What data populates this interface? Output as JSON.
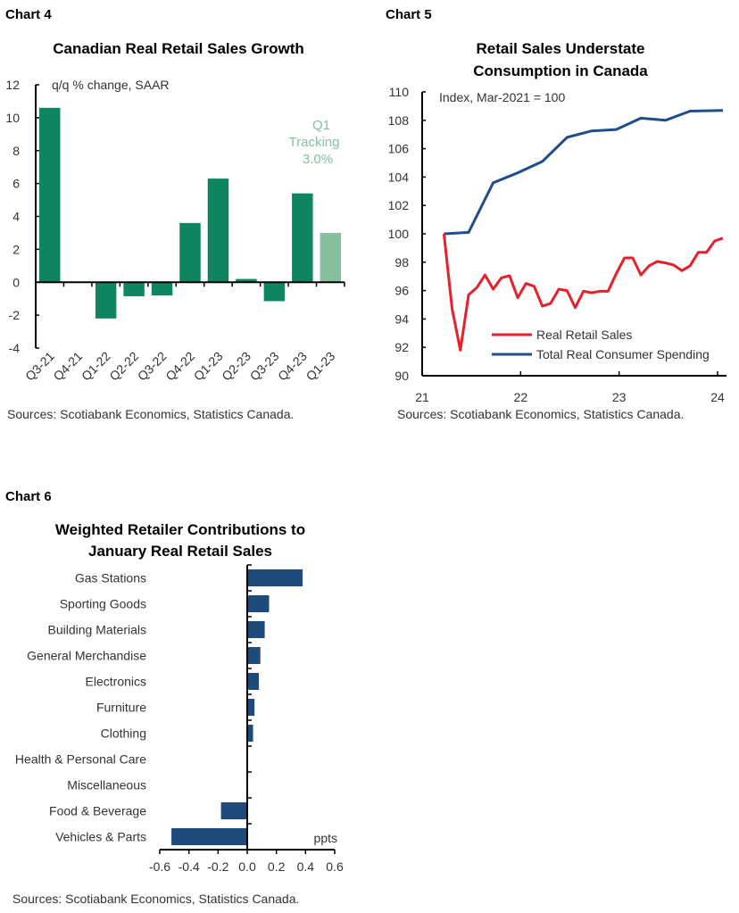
{
  "chart_data": [
    {
      "id": "chart4",
      "type": "bar",
      "label": "Chart 4",
      "title": "Canadian Real Retail Sales Growth",
      "ylabel": "q/q % change, SAAR",
      "categories": [
        "Q3-21",
        "Q4-21",
        "Q1-22",
        "Q2-22",
        "Q3-22",
        "Q4-22",
        "Q1-23",
        "Q2-23",
        "Q3-23",
        "Q4-23",
        "Q1-23"
      ],
      "values": [
        10.6,
        0,
        -2.2,
        -0.85,
        -0.8,
        3.6,
        6.3,
        0.2,
        -1.15,
        5.4,
        3.0
      ],
      "highlight_last": true,
      "annotation": [
        "Q1",
        "Tracking",
        "3.0%"
      ],
      "ylim": [
        -4,
        12
      ],
      "yticks": [
        "-4",
        "-2",
        "0",
        "2",
        "4",
        "6",
        "8",
        "10",
        "12"
      ],
      "colors": {
        "bar": "#0e8560",
        "tracking": "#86c09f",
        "annotation": "#86c09f"
      },
      "source": "Sources: Scotiabank Economics, Statistics Canada."
    },
    {
      "id": "chart5",
      "type": "line",
      "label": "Chart 5",
      "title": [
        "Retail Sales Understate",
        "Consumption in Canada"
      ],
      "ylabel": "Index, Mar-2021 = 100",
      "ylim": [
        90,
        110
      ],
      "yticks": [
        "90",
        "92",
        "94",
        "96",
        "98",
        "100",
        "102",
        "104",
        "106",
        "108",
        "110"
      ],
      "xticks": [
        "21",
        "22",
        "23",
        "24"
      ],
      "legend": "bottom-right",
      "series": [
        {
          "name": "Real Retail Sales",
          "color": "#e8202a",
          "x": [
            "Mar-21",
            "Apr-21",
            "May-21",
            "Jun-21",
            "Jul-21",
            "Aug-21",
            "Sep-21",
            "Oct-21",
            "Nov-21",
            "Dec-21",
            "Jan-22",
            "Feb-22",
            "Mar-22",
            "Apr-22",
            "May-22",
            "Jun-22",
            "Jul-22",
            "Aug-22",
            "Sep-22",
            "Oct-22",
            "Nov-22",
            "Dec-22",
            "Jan-23",
            "Feb-23",
            "Mar-23",
            "Apr-23",
            "May-23",
            "Jun-23",
            "Jul-23",
            "Aug-23",
            "Sep-23",
            "Oct-23",
            "Nov-23",
            "Dec-23",
            "Jan-24"
          ],
          "values": [
            100,
            94.7,
            91.8,
            95.7,
            96.2,
            97.1,
            96.1,
            96.9,
            97.05,
            95.5,
            96.5,
            96.3,
            94.9,
            95.1,
            96.1,
            96.0,
            94.8,
            95.95,
            95.85,
            95.95,
            95.95,
            97.2,
            98.3,
            98.3,
            97.1,
            97.75,
            98.05,
            97.95,
            97.8,
            97.4,
            97.75,
            98.7,
            98.7,
            99.5,
            99.7
          ]
        },
        {
          "name": "Total Real Consumer Spending",
          "color": "#1f4e8c",
          "x": [
            "Mar-21",
            "Jun-21",
            "Sep-21",
            "Dec-21",
            "Mar-22",
            "Jun-22",
            "Sep-22",
            "Dec-22",
            "Mar-23",
            "Jun-23",
            "Sep-23",
            "Jan-24"
          ],
          "values": [
            100,
            100.1,
            103.6,
            104.3,
            105.1,
            106.8,
            107.25,
            107.35,
            108.15,
            108.0,
            108.65,
            108.7
          ]
        }
      ],
      "source": "Sources: Scotiabank Economics, Statistics Canada."
    },
    {
      "id": "chart6",
      "type": "bar",
      "orientation": "horizontal",
      "label": "Chart 6",
      "title": [
        "Weighted Retailer Contributions to",
        "January Real Retail Sales"
      ],
      "xlabel": "ppts",
      "categories": [
        "Gas Stations",
        "Sporting Goods",
        "Building Materials",
        "General Merchandise",
        "Electronics",
        "Furniture",
        "Clothing",
        "Health & Personal Care",
        "Miscellaneous",
        "Food & Beverage",
        "Vehicles & Parts"
      ],
      "values": [
        0.38,
        0.15,
        0.12,
        0.09,
        0.08,
        0.05,
        0.04,
        0,
        0,
        -0.18,
        -0.52
      ],
      "xlim": [
        -0.6,
        0.6
      ],
      "xticks": [
        "-0.6",
        "-0.4",
        "-0.2",
        "0.0",
        "0.2",
        "0.4",
        "0.6"
      ],
      "colors": {
        "bar": "#1f4a7c"
      },
      "source": "Sources: Scotiabank Economics, Statistics Canada."
    }
  ]
}
